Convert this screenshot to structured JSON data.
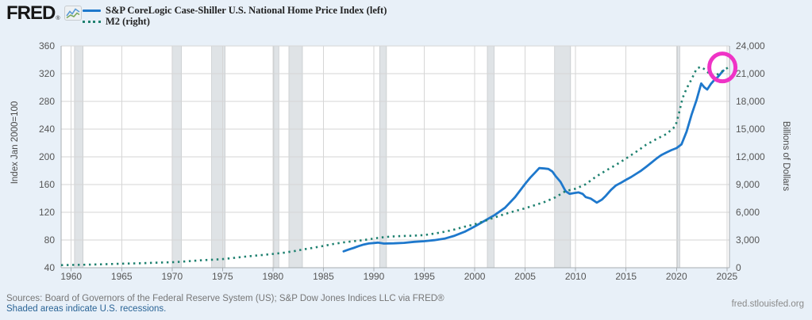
{
  "header": {
    "logo": "FRED",
    "registered_mark": "®",
    "legend": [
      {
        "label": "S&P CoreLogic Case-Shiller U.S. National Home Price Index (left)",
        "style": "solid",
        "color": "#1e78cc"
      },
      {
        "label": "M2 (right)",
        "style": "dotted",
        "color": "#1f8170"
      }
    ]
  },
  "footer": {
    "sources": "Sources: Board of Governors of the Federal Reserve System (US); S&P Dow Jones Indices LLC via FRED®",
    "recession_note": "Shaded areas indicate U.S. recessions.",
    "site": "fred.stlouisfed.org"
  },
  "colors": {
    "background": "#e8f0f8",
    "plot_background": "#ffffff",
    "gridline": "#d6d6d6",
    "recession_band": "#dfe3e6",
    "band_edge": "#c4c8cb",
    "axis_line": "#a7acb0",
    "tick_text": "#565656",
    "case_shiller_line": "#1e78cc",
    "m2_line": "#1f8170",
    "annotation_circle": "#ef33c6"
  },
  "chart_data": {
    "type": "line",
    "title": "",
    "left_axis": {
      "label": "Index Jan 2000=100",
      "range": [
        40,
        360
      ],
      "ticks": [
        40,
        80,
        120,
        160,
        200,
        240,
        280,
        320,
        360
      ],
      "tick_labels": [
        "40",
        "80",
        "120",
        "160",
        "200",
        "240",
        "280",
        "320",
        "360"
      ]
    },
    "right_axis": {
      "label": "Billions of Dollars",
      "range": [
        0,
        24000
      ],
      "ticks": [
        0,
        3000,
        6000,
        9000,
        12000,
        15000,
        18000,
        21000,
        24000
      ],
      "tick_labels": [
        "0",
        "3,000",
        "6,000",
        "9,000",
        "12,000",
        "15,000",
        "18,000",
        "21,000",
        "24,000"
      ]
    },
    "x_axis": {
      "range": [
        1959.0,
        2025.25
      ],
      "ticks": [
        1960,
        1965,
        1970,
        1975,
        1980,
        1985,
        1990,
        1995,
        2000,
        2005,
        2010,
        2015,
        2020,
        2025
      ],
      "tick_labels": [
        "1960",
        "1965",
        "1970",
        "1975",
        "1980",
        "1985",
        "1990",
        "1995",
        "2000",
        "2005",
        "2010",
        "2015",
        "2020",
        "2025"
      ]
    },
    "grid": true,
    "legend_position": "top-left",
    "recessions": [
      [
        1960.33,
        1961.17
      ],
      [
        1970.0,
        1970.92
      ],
      [
        1973.92,
        1975.25
      ],
      [
        1980.08,
        1980.58
      ],
      [
        1981.58,
        1982.92
      ],
      [
        1990.58,
        1991.25
      ],
      [
        2001.25,
        2001.92
      ],
      [
        2007.92,
        2009.5
      ],
      [
        2020.08,
        2020.33
      ]
    ],
    "series": [
      {
        "name": "S&P CoreLogic Case-Shiller U.S. National Home Price Index",
        "axis": "left",
        "style": "solid",
        "color": "#1e78cc",
        "points": [
          [
            1987.0,
            63.7
          ],
          [
            1987.5,
            66.2
          ],
          [
            1988.0,
            68.6
          ],
          [
            1988.5,
            71.2
          ],
          [
            1989.0,
            73.5
          ],
          [
            1989.5,
            75.0
          ],
          [
            1990.0,
            75.7
          ],
          [
            1990.4,
            76.2
          ],
          [
            1991.0,
            74.9
          ],
          [
            1991.5,
            75.1
          ],
          [
            1992.0,
            75.2
          ],
          [
            1993.0,
            75.9
          ],
          [
            1994.0,
            77.4
          ],
          [
            1995.0,
            78.3
          ],
          [
            1996.0,
            79.8
          ],
          [
            1997.0,
            82.0
          ],
          [
            1998.0,
            86.2
          ],
          [
            1999.0,
            91.9
          ],
          [
            2000.0,
            99.5
          ],
          [
            2001.0,
            107.9
          ],
          [
            2002.0,
            116.2
          ],
          [
            2003.0,
            126.5
          ],
          [
            2004.0,
            141.8
          ],
          [
            2005.0,
            161.0
          ],
          [
            2005.5,
            170.0
          ],
          [
            2006.0,
            177.5
          ],
          [
            2006.4,
            183.8
          ],
          [
            2006.9,
            183.2
          ],
          [
            2007.3,
            182.5
          ],
          [
            2007.7,
            178.8
          ],
          [
            2008.0,
            172.4
          ],
          [
            2008.5,
            164.0
          ],
          [
            2009.0,
            150.5
          ],
          [
            2009.4,
            146.6
          ],
          [
            2009.9,
            147.9
          ],
          [
            2010.3,
            148.7
          ],
          [
            2010.7,
            146.5
          ],
          [
            2011.0,
            142.0
          ],
          [
            2011.5,
            139.8
          ],
          [
            2012.1,
            134.0
          ],
          [
            2012.6,
            138.2
          ],
          [
            2013.0,
            143.9
          ],
          [
            2013.5,
            152.2
          ],
          [
            2014.0,
            158.8
          ],
          [
            2014.5,
            162.6
          ],
          [
            2015.0,
            166.8
          ],
          [
            2015.5,
            170.9
          ],
          [
            2016.0,
            175.4
          ],
          [
            2016.5,
            180.1
          ],
          [
            2017.0,
            185.6
          ],
          [
            2017.5,
            191.4
          ],
          [
            2018.0,
            197.4
          ],
          [
            2018.5,
            202.6
          ],
          [
            2019.0,
            206.3
          ],
          [
            2019.5,
            209.7
          ],
          [
            2020.0,
            212.6
          ],
          [
            2020.5,
            218.1
          ],
          [
            2021.0,
            236.3
          ],
          [
            2021.5,
            260.9
          ],
          [
            2022.0,
            282.5
          ],
          [
            2022.45,
            305.8
          ],
          [
            2022.75,
            300.5
          ],
          [
            2023.05,
            297.2
          ],
          [
            2023.4,
            305.0
          ],
          [
            2023.8,
            311.8
          ],
          [
            2024.1,
            315.2
          ],
          [
            2024.4,
            320.5
          ],
          [
            2024.65,
            324.5
          ]
        ]
      },
      {
        "name": "M2",
        "axis": "right",
        "style": "dotted",
        "color": "#1f8170",
        "points": [
          [
            1959.0,
            287
          ],
          [
            1960,
            298
          ],
          [
            1961,
            316
          ],
          [
            1962,
            343
          ],
          [
            1963,
            371
          ],
          [
            1964,
            401
          ],
          [
            1965,
            433
          ],
          [
            1966,
            459
          ],
          [
            1967,
            491
          ],
          [
            1968,
            528
          ],
          [
            1969,
            567
          ],
          [
            1970,
            591
          ],
          [
            1971,
            659
          ],
          [
            1972,
            737
          ],
          [
            1973,
            811
          ],
          [
            1974,
            864
          ],
          [
            1975,
            936
          ],
          [
            1976,
            1048
          ],
          [
            1977,
            1171
          ],
          [
            1978,
            1284
          ],
          [
            1979,
            1384
          ],
          [
            1980,
            1491
          ],
          [
            1981,
            1613
          ],
          [
            1982,
            1772
          ],
          [
            1983,
            1984
          ],
          [
            1984,
            2162
          ],
          [
            1985,
            2360
          ],
          [
            1986,
            2570
          ],
          [
            1987,
            2744
          ],
          [
            1988,
            2872
          ],
          [
            1989,
            2994
          ],
          [
            1990,
            3164
          ],
          [
            1991,
            3309
          ],
          [
            1992,
            3396
          ],
          [
            1993,
            3434
          ],
          [
            1994,
            3473
          ],
          [
            1995,
            3530
          ],
          [
            1996,
            3690
          ],
          [
            1997,
            3890
          ],
          [
            1998,
            4137
          ],
          [
            1999,
            4437
          ],
          [
            2000,
            4701
          ],
          [
            2001,
            5062
          ],
          [
            2002,
            5450
          ],
          [
            2003,
            5818
          ],
          [
            2004,
            6125
          ],
          [
            2005,
            6438
          ],
          [
            2006,
            6778
          ],
          [
            2007,
            7148
          ],
          [
            2008,
            7618
          ],
          [
            2009,
            8290
          ],
          [
            2010,
            8558
          ],
          [
            2011,
            9038
          ],
          [
            2012,
            9838
          ],
          [
            2013,
            10510
          ],
          [
            2014,
            11125
          ],
          [
            2015,
            11824
          ],
          [
            2016,
            12540
          ],
          [
            2017,
            13315
          ],
          [
            2018,
            13920
          ],
          [
            2019,
            14465
          ],
          [
            2019.9,
            15320
          ],
          [
            2020.25,
            16750
          ],
          [
            2020.6,
            18350
          ],
          [
            2021.0,
            19400
          ],
          [
            2021.5,
            20400
          ],
          [
            2022.0,
            21550
          ],
          [
            2022.4,
            21740
          ],
          [
            2022.9,
            21400
          ],
          [
            2023.3,
            20950
          ],
          [
            2023.8,
            20760
          ],
          [
            2024.3,
            21080
          ],
          [
            2024.8,
            21460
          ],
          [
            2025.1,
            21650
          ]
        ]
      }
    ],
    "annotation": {
      "shape": "ellipse",
      "x_year": 2024.55,
      "y_left_value": 329,
      "rx": 16.5,
      "ry": 17.5,
      "stroke_width": 5,
      "color": "#ef33c6"
    }
  }
}
